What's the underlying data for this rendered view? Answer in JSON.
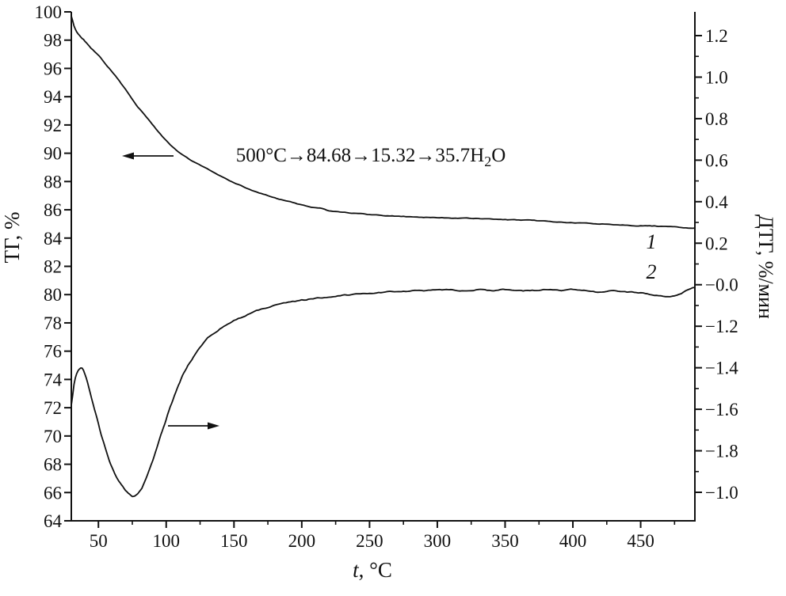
{
  "figure": {
    "background": "#ffffff",
    "line_color": "#111111"
  },
  "chart_data": {
    "type": "line",
    "title": "",
    "grid": false,
    "legend": "none",
    "x_axis": {
      "label": "t, °C",
      "label_italic": "t",
      "label_rest": ", °C",
      "range": [
        30,
        490
      ],
      "tick_values": [
        50,
        100,
        150,
        200,
        250,
        300,
        350,
        400,
        450
      ],
      "tick_labels": [
        "50",
        "100",
        "150",
        "200",
        "250",
        "300",
        "350",
        "400",
        "450"
      ]
    },
    "y_left_axis": {
      "label": "ТГ, %",
      "range": [
        64,
        100
      ],
      "tick_values": [
        100,
        98,
        96,
        94,
        92,
        90,
        88,
        86,
        84,
        82,
        80,
        78,
        76,
        74,
        72,
        70,
        68,
        66,
        64
      ],
      "tick_labels": [
        "100",
        "98",
        "96",
        "94",
        "92",
        "90",
        "88",
        "86",
        "84",
        "82",
        "80",
        "78",
        "76",
        "74",
        "72",
        "70",
        "68",
        "66",
        "64"
      ]
    },
    "y_right_axis": {
      "label": "ДТГ, %/мин",
      "tick_labels": [
        "1.2",
        "1.0",
        "0.8",
        "0.6",
        "0.4",
        "0.2",
        "−0.0",
        "−1.2",
        "−1.4",
        "−1.6",
        "−1.8",
        "−1.0"
      ]
    },
    "annotation": {
      "full": "500°C→84.68→15.32→35.7H2O",
      "prefix": "500°C→84.68→15.32→35.7H",
      "sub": "2",
      "suffix": "O"
    },
    "series": [
      {
        "name": "1",
        "label": "1",
        "axis": "left",
        "description": "TG curve, mass %",
        "points": [
          [
            30,
            99.7
          ],
          [
            32,
            99.0
          ],
          [
            34,
            98.6
          ],
          [
            36,
            98.35
          ],
          [
            38,
            98.15
          ],
          [
            40,
            97.95
          ],
          [
            43,
            97.6
          ],
          [
            46,
            97.3
          ],
          [
            49,
            97.0
          ],
          [
            52,
            96.7
          ],
          [
            55,
            96.35
          ],
          [
            58,
            96.0
          ],
          [
            61,
            95.65
          ],
          [
            64,
            95.3
          ],
          [
            67,
            94.9
          ],
          [
            70,
            94.5
          ],
          [
            73,
            94.1
          ],
          [
            76,
            93.7
          ],
          [
            79,
            93.3
          ],
          [
            82,
            92.95
          ],
          [
            85,
            92.6
          ],
          [
            88,
            92.25
          ],
          [
            91,
            91.9
          ],
          [
            94,
            91.55
          ],
          [
            97,
            91.2
          ],
          [
            100,
            90.9
          ],
          [
            103,
            90.6
          ],
          [
            106,
            90.35
          ],
          [
            109,
            90.1
          ],
          [
            112,
            89.9
          ],
          [
            115,
            89.7
          ],
          [
            118,
            89.5
          ],
          [
            121,
            89.35
          ],
          [
            124,
            89.2
          ],
          [
            128,
            89.0
          ],
          [
            132,
            88.8
          ],
          [
            136,
            88.6
          ],
          [
            140,
            88.4
          ],
          [
            145,
            88.15
          ],
          [
            150,
            87.9
          ],
          [
            155,
            87.7
          ],
          [
            160,
            87.5
          ],
          [
            165,
            87.3
          ],
          [
            170,
            87.15
          ],
          [
            175,
            87.0
          ],
          [
            180,
            86.85
          ],
          [
            185,
            86.7
          ],
          [
            190,
            86.6
          ],
          [
            195,
            86.45
          ],
          [
            200,
            86.35
          ],
          [
            205,
            86.25
          ],
          [
            210,
            86.15
          ],
          [
            215,
            86.1
          ],
          [
            220,
            85.95
          ],
          [
            225,
            85.9
          ],
          [
            230,
            85.85
          ],
          [
            235,
            85.8
          ],
          [
            240,
            85.75
          ],
          [
            245,
            85.7
          ],
          [
            250,
            85.65
          ],
          [
            260,
            85.6
          ],
          [
            270,
            85.55
          ],
          [
            280,
            85.5
          ],
          [
            290,
            85.48
          ],
          [
            300,
            85.45
          ],
          [
            310,
            85.42
          ],
          [
            320,
            85.4
          ],
          [
            330,
            85.37
          ],
          [
            340,
            85.33
          ],
          [
            350,
            85.3
          ],
          [
            360,
            85.27
          ],
          [
            370,
            85.23
          ],
          [
            380,
            85.18
          ],
          [
            390,
            85.13
          ],
          [
            400,
            85.08
          ],
          [
            410,
            85.04
          ],
          [
            420,
            85.0
          ],
          [
            430,
            84.97
          ],
          [
            440,
            84.93
          ],
          [
            450,
            84.88
          ],
          [
            460,
            84.85
          ],
          [
            470,
            84.8
          ],
          [
            480,
            84.75
          ],
          [
            490,
            84.7
          ]
        ]
      },
      {
        "name": "2",
        "label": "2",
        "axis": "right",
        "description": "DTG curve, %/min (estimated, linear right scale)",
        "points": [
          [
            30,
            -0.58
          ],
          [
            32,
            -0.48
          ],
          [
            34,
            -0.43
          ],
          [
            36,
            -0.41
          ],
          [
            38,
            -0.405
          ],
          [
            40,
            -0.43
          ],
          [
            42,
            -0.47
          ],
          [
            44,
            -0.52
          ],
          [
            46,
            -0.57
          ],
          [
            48,
            -0.62
          ],
          [
            50,
            -0.67
          ],
          [
            52,
            -0.72
          ],
          [
            54,
            -0.765
          ],
          [
            56,
            -0.805
          ],
          [
            58,
            -0.845
          ],
          [
            60,
            -0.88
          ],
          [
            62,
            -0.91
          ],
          [
            64,
            -0.935
          ],
          [
            66,
            -0.955
          ],
          [
            68,
            -0.975
          ],
          [
            70,
            -0.99
          ],
          [
            72,
            -1.005
          ],
          [
            74,
            -1.015
          ],
          [
            76,
            -1.02
          ],
          [
            78,
            -1.015
          ],
          [
            80,
            -1.0
          ],
          [
            82,
            -0.98
          ],
          [
            84,
            -0.95
          ],
          [
            86,
            -0.915
          ],
          [
            88,
            -0.88
          ],
          [
            90,
            -0.845
          ],
          [
            92,
            -0.805
          ],
          [
            94,
            -0.765
          ],
          [
            96,
            -0.725
          ],
          [
            98,
            -0.685
          ],
          [
            100,
            -0.645
          ],
          [
            102,
            -0.605
          ],
          [
            104,
            -0.57
          ],
          [
            106,
            -0.535
          ],
          [
            108,
            -0.5
          ],
          [
            110,
            -0.47
          ],
          [
            112,
            -0.44
          ],
          [
            114,
            -0.415
          ],
          [
            116,
            -0.39
          ],
          [
            118,
            -0.37
          ],
          [
            120,
            -0.35
          ],
          [
            123,
            -0.32
          ],
          [
            126,
            -0.295
          ],
          [
            129,
            -0.27
          ],
          [
            132,
            -0.25
          ],
          [
            135,
            -0.235
          ],
          [
            138,
            -0.22
          ],
          [
            141,
            -0.205
          ],
          [
            144,
            -0.195
          ],
          [
            147,
            -0.185
          ],
          [
            150,
            -0.175
          ],
          [
            155,
            -0.16
          ],
          [
            160,
            -0.145
          ],
          [
            165,
            -0.13
          ],
          [
            170,
            -0.12
          ],
          [
            175,
            -0.11
          ],
          [
            180,
            -0.1
          ],
          [
            185,
            -0.095
          ],
          [
            190,
            -0.088
          ],
          [
            195,
            -0.082
          ],
          [
            200,
            -0.076
          ],
          [
            210,
            -0.066
          ],
          [
            220,
            -0.058
          ],
          [
            230,
            -0.05
          ],
          [
            240,
            -0.045
          ],
          [
            250,
            -0.04
          ],
          [
            260,
            -0.036
          ],
          [
            270,
            -0.032
          ],
          [
            280,
            -0.03
          ],
          [
            290,
            -0.028
          ],
          [
            300,
            -0.028
          ],
          [
            310,
            -0.026
          ],
          [
            320,
            -0.028
          ],
          [
            330,
            -0.025
          ],
          [
            340,
            -0.028
          ],
          [
            350,
            -0.022
          ],
          [
            360,
            -0.028
          ],
          [
            370,
            -0.028
          ],
          [
            380,
            -0.024
          ],
          [
            390,
            -0.028
          ],
          [
            400,
            -0.024
          ],
          [
            410,
            -0.03
          ],
          [
            420,
            -0.038
          ],
          [
            430,
            -0.03
          ],
          [
            440,
            -0.034
          ],
          [
            450,
            -0.04
          ],
          [
            460,
            -0.05
          ],
          [
            470,
            -0.055
          ],
          [
            480,
            -0.045
          ],
          [
            485,
            -0.025
          ],
          [
            490,
            -0.012
          ]
        ]
      }
    ]
  }
}
